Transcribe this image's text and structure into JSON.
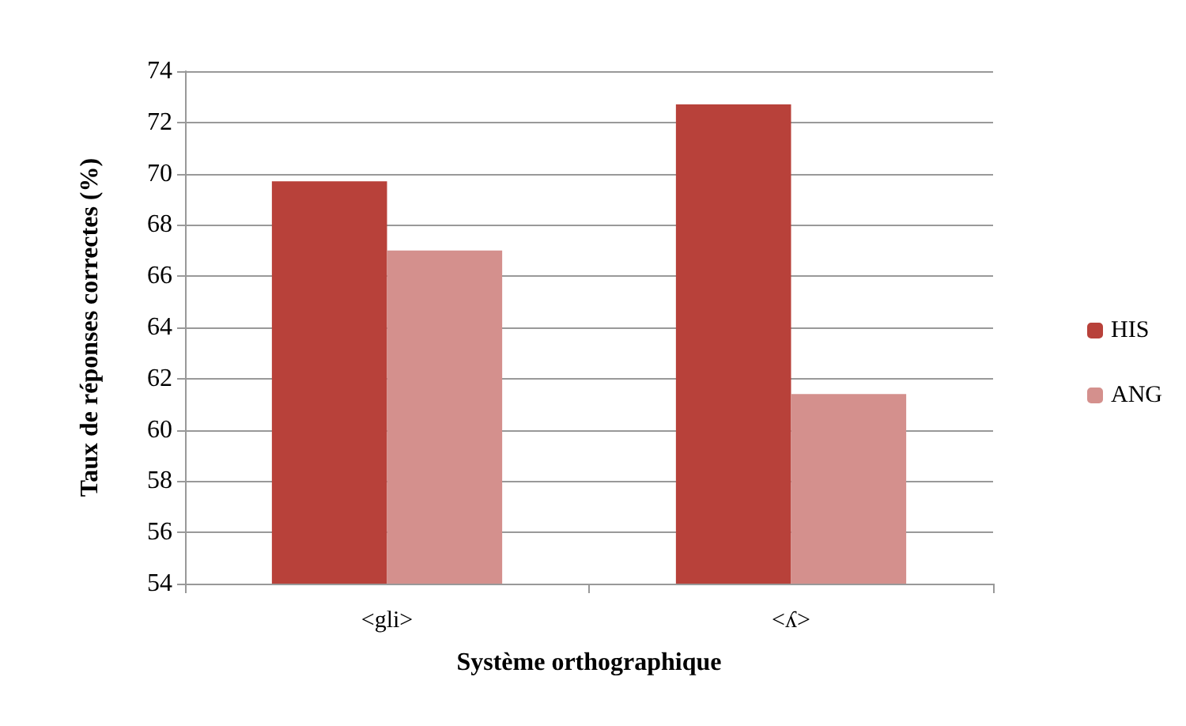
{
  "chart_data": {
    "type": "bar",
    "xlabel": "Système orthographique",
    "ylabel": "Taux de réponses correctes (%)",
    "categories": [
      "<gli>",
      "<ʎ>"
    ],
    "series": [
      {
        "name": "HIS",
        "color": "#b8413a",
        "values": [
          69.7,
          72.7
        ]
      },
      {
        "name": "ANG",
        "color": "#d4908d",
        "values": [
          67.0,
          61.4
        ]
      }
    ],
    "ylim": [
      54,
      74
    ],
    "yticks": [
      54,
      56,
      58,
      60,
      62,
      64,
      66,
      68,
      70,
      72,
      74
    ],
    "grid": "y",
    "legend": "right"
  }
}
